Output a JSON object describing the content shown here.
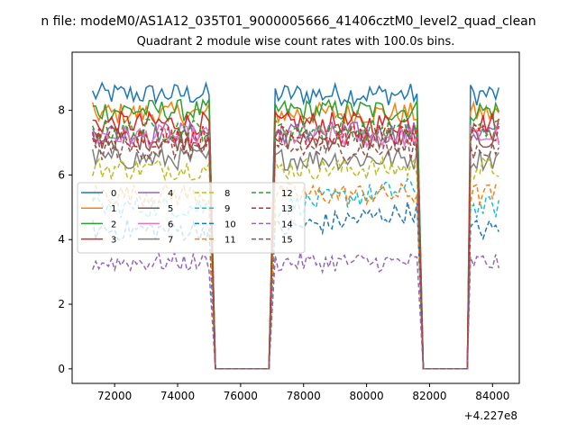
{
  "figure": {
    "suptitle": "n file: modeM0/AS1A12_035T01_9000005666_41406cztM0_level2_quad_clean",
    "title": "Quadrant 2 module wise count rates with 100.0s bins.",
    "x_offset_label": "+4.227e8"
  },
  "chart_data": {
    "type": "line",
    "title": "Quadrant 2 module wise count rates with 100.0s bins.",
    "xlabel": "",
    "ylabel": "",
    "x_offset": 422700000,
    "xlim": [
      70650,
      84850
    ],
    "ylim": [
      -0.45,
      9.8
    ],
    "xticks": [
      72000,
      74000,
      76000,
      78000,
      80000,
      82000,
      84000
    ],
    "xtick_labels": [
      "72000",
      "74000",
      "76000",
      "78000",
      "80000",
      "82000",
      "84000"
    ],
    "yticks": [
      0,
      2,
      4,
      6,
      8
    ],
    "ytick_labels": [
      "0",
      "2",
      "4",
      "6",
      "8"
    ],
    "grid": false,
    "legend": {
      "placement": "center-left",
      "columns": 4
    },
    "segments": [
      {
        "x_start": 71300,
        "x_end": 75000
      },
      {
        "x_start": 77100,
        "x_end": 81600
      },
      {
        "x_start": 83300,
        "x_end": 84200
      }
    ],
    "gaps": [
      {
        "x_start": 75200,
        "x_end": 76900,
        "value": 0
      },
      {
        "x_start": 81800,
        "x_end": 83200,
        "value": 0
      }
    ],
    "bin_seconds": 100,
    "series": [
      {
        "name": "0",
        "color": "#1f77b4",
        "dash": "solid",
        "level": 8.5,
        "noise": 0.35
      },
      {
        "name": "1",
        "color": "#ff7f0e",
        "dash": "solid",
        "level": 7.9,
        "noise": 0.35
      },
      {
        "name": "2",
        "color": "#2ca02c",
        "dash": "solid",
        "level": 8.0,
        "noise": 0.35
      },
      {
        "name": "3",
        "color": "#d62728",
        "dash": "solid",
        "level": 7.6,
        "noise": 0.35
      },
      {
        "name": "4",
        "color": "#9467bd",
        "dash": "solid",
        "level": 7.3,
        "noise": 0.35
      },
      {
        "name": "5",
        "color": "#8c564b",
        "dash": "solid",
        "level": 7.1,
        "noise": 0.35
      },
      {
        "name": "6",
        "color": "#e377c2",
        "dash": "solid",
        "level": 7.2,
        "noise": 0.35
      },
      {
        "name": "7",
        "color": "#7f7f7f",
        "dash": "solid",
        "level": 6.5,
        "noise": 0.35
      },
      {
        "name": "8",
        "color": "#bcbd22",
        "dash": "dashed",
        "level": 6.2,
        "noise": 0.35
      },
      {
        "name": "9",
        "color": "#17becf",
        "dash": "dashed",
        "level": 5.0,
        "noise": 0.35
      },
      {
        "name": "10",
        "color": "#1f77b4",
        "dash": "dashed",
        "level": 4.3,
        "noise": 0.35
      },
      {
        "name": "11",
        "color": "#ff7f0e",
        "dash": "dashed",
        "level": 5.4,
        "noise": 0.35
      },
      {
        "name": "12",
        "color": "#2ca02c",
        "dash": "dashed",
        "level": 7.4,
        "noise": 0.35
      },
      {
        "name": "13",
        "color": "#d62728",
        "dash": "dashed",
        "level": 7.2,
        "noise": 0.35
      },
      {
        "name": "14",
        "color": "#9467bd",
        "dash": "dashed",
        "level": 3.3,
        "noise": 0.3
      },
      {
        "name": "15",
        "color": "#8c564b",
        "dash": "dashed",
        "level": 6.8,
        "noise": 0.35
      }
    ]
  }
}
